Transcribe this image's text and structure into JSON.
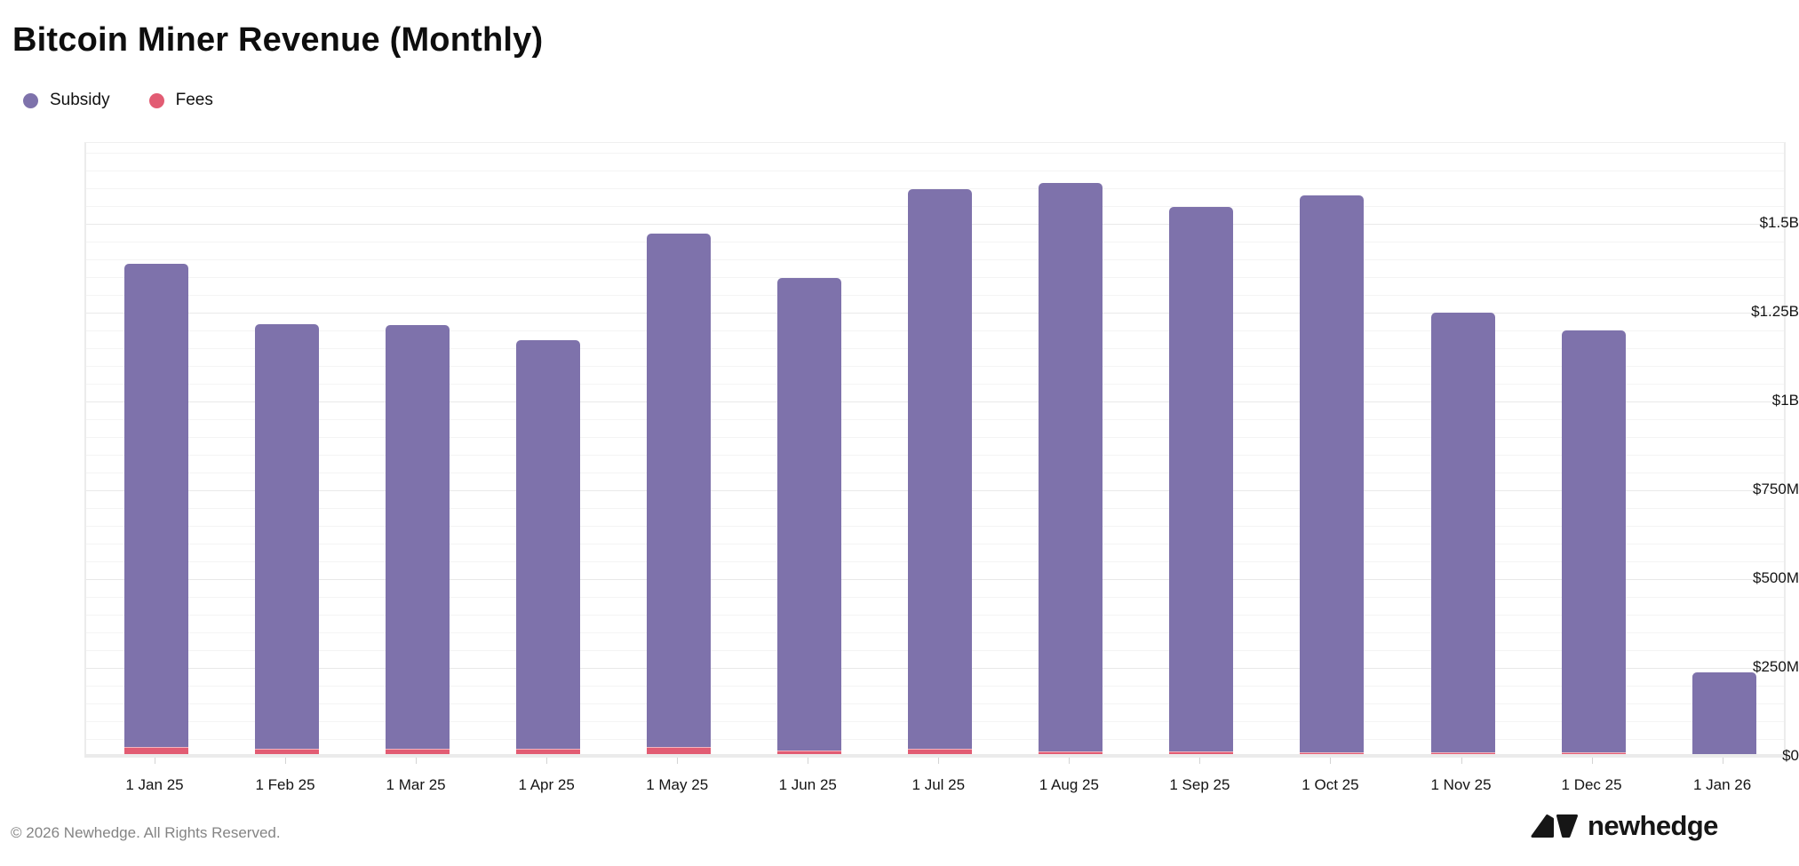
{
  "header": {
    "title": "Bitcoin Miner Revenue (Monthly)"
  },
  "legend": {
    "items": [
      {
        "label": "Subsidy",
        "color": "#7e72ab"
      },
      {
        "label": "Fees",
        "color": "#e25c73"
      }
    ]
  },
  "chart_data": {
    "type": "bar",
    "stacked": true,
    "title": "Bitcoin Miner Revenue (Monthly)",
    "unit": "USD millions",
    "categories": [
      "1 Jan 25",
      "1 Feb 25",
      "1 Mar 25",
      "1 Apr 25",
      "1 May 25",
      "1 Jun 25",
      "1 Jul 25",
      "1 Aug 25",
      "1 Sep 25",
      "1 Oct 25",
      "1 Nov 25",
      "1 Dec 25",
      "1 Jan 26"
    ],
    "series": [
      {
        "name": "Fees",
        "color": "#e25c73",
        "stack_position": "bottom",
        "values": [
          26,
          19,
          20,
          19,
          24,
          16,
          19,
          13,
          13,
          11,
          10,
          9,
          2
        ]
      },
      {
        "name": "Subsidy",
        "color": "#7e72ab",
        "stack_position": "top",
        "values": [
          1359,
          1196,
          1192,
          1151,
          1446,
          1329,
          1576,
          1600,
          1532,
          1567,
          1238,
          1189,
          233
        ]
      }
    ],
    "stack_totals": [
      1385,
      1215,
      1212,
      1170,
      1470,
      1345,
      1595,
      1613,
      1545,
      1578,
      1248,
      1198,
      235
    ],
    "xlabel": "",
    "ylabel": "",
    "ylim": [
      0,
      1727
    ],
    "yticks": [
      {
        "value": 0,
        "label": "$0"
      },
      {
        "value": 250,
        "label": "$250M"
      },
      {
        "value": 500,
        "label": "$500M"
      },
      {
        "value": 750,
        "label": "$750M"
      },
      {
        "value": 1000,
        "label": "$1B"
      },
      {
        "value": 1250,
        "label": "$1.25B"
      },
      {
        "value": 1500,
        "label": "$1.5B"
      }
    ],
    "minor_grid_step": 50,
    "grid": true,
    "legend_position": "top-left"
  },
  "footer": {
    "copyright": "© 2026 Newhedge. All Rights Reserved.",
    "logo_text": "newhedge"
  }
}
